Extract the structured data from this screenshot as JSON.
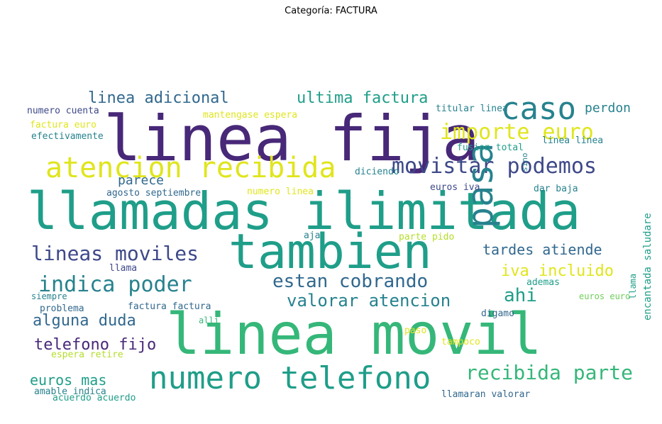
{
  "title": "Categoría: FACTURA",
  "palette": {
    "purple": "#482878",
    "indigo": "#3e4989",
    "blue": "#31688e",
    "teal": "#26828e",
    "green": "#1f9e89",
    "mint": "#35b779",
    "lime": "#6ece58",
    "yellowgreen": "#b5de2b",
    "yellow": "#e0e51c"
  },
  "words": [
    {
      "text": "linea fija",
      "color": "purple"
    },
    {
      "text": "llamadas ilimitada",
      "color": "green"
    },
    {
      "text": "linea movil",
      "color": "mint"
    },
    {
      "text": "tambien",
      "color": "green"
    },
    {
      "text": "atencion recibida",
      "color": "yellow"
    },
    {
      "text": "numero telefono",
      "color": "green"
    },
    {
      "text": "caso",
      "color": "teal"
    },
    {
      "text": "importe euro",
      "color": "yellow"
    },
    {
      "text": "movistar podemos",
      "color": "indigo"
    },
    {
      "text": "pasa",
      "color": "teal"
    },
    {
      "text": "indica poder",
      "color": "teal"
    },
    {
      "text": "lineas moviles",
      "color": "indigo"
    },
    {
      "text": "estan cobrando",
      "color": "blue"
    },
    {
      "text": "valorar atencion",
      "color": "teal"
    },
    {
      "text": "recibida parte",
      "color": "mint"
    },
    {
      "text": "ultima factura",
      "color": "green"
    },
    {
      "text": "linea adicional",
      "color": "blue"
    },
    {
      "text": "alguna duda",
      "color": "blue"
    },
    {
      "text": "telefono fijo",
      "color": "purple"
    },
    {
      "text": "tardes atiende",
      "color": "blue"
    },
    {
      "text": "iva incluido",
      "color": "yellow"
    },
    {
      "text": "ahi",
      "color": "green"
    },
    {
      "text": "euros mas",
      "color": "green"
    },
    {
      "text": "perdon",
      "color": "teal"
    },
    {
      "text": "parece",
      "color": "blue"
    },
    {
      "text": "mantengase espera",
      "color": "yellow"
    },
    {
      "text": "numero cuenta",
      "color": "indigo"
    },
    {
      "text": "factura euro",
      "color": "yellow"
    },
    {
      "text": "efectivamente",
      "color": "teal"
    },
    {
      "text": "titular linea",
      "color": "teal"
    },
    {
      "text": "fusion total",
      "color": "green"
    },
    {
      "text": "linea linea",
      "color": "teal"
    },
    {
      "text": "diciendo",
      "color": "teal"
    },
    {
      "text": "agosto septiembre",
      "color": "blue"
    },
    {
      "text": "numero linea",
      "color": "yellow"
    },
    {
      "text": "euros iva",
      "color": "indigo"
    },
    {
      "text": "dar baja",
      "color": "teal"
    },
    {
      "text": "aja",
      "color": "teal"
    },
    {
      "text": "parte pido",
      "color": "yellowgreen"
    },
    {
      "text": "llama",
      "color": "indigo"
    },
    {
      "text": "ademas",
      "color": "green"
    },
    {
      "text": "euros euro",
      "color": "lime"
    },
    {
      "text": "siempre",
      "color": "teal"
    },
    {
      "text": "factura factura",
      "color": "blue"
    },
    {
      "text": "problema",
      "color": "blue"
    },
    {
      "text": "alli",
      "color": "mint"
    },
    {
      "text": "digamo",
      "color": "blue"
    },
    {
      "text": "paso",
      "color": "yellow"
    },
    {
      "text": "tampoco",
      "color": "yellow"
    },
    {
      "text": "espera retire",
      "color": "yellowgreen"
    },
    {
      "text": "amable indica",
      "color": "teal"
    },
    {
      "text": "acuerdo acuerdo",
      "color": "green"
    },
    {
      "text": "llamaran valorar",
      "color": "blue"
    },
    {
      "text": "encantada saludare",
      "color": "green"
    },
    {
      "text": "llama",
      "color": "green"
    },
    {
      "text": "sino",
      "color": "teal"
    }
  ]
}
